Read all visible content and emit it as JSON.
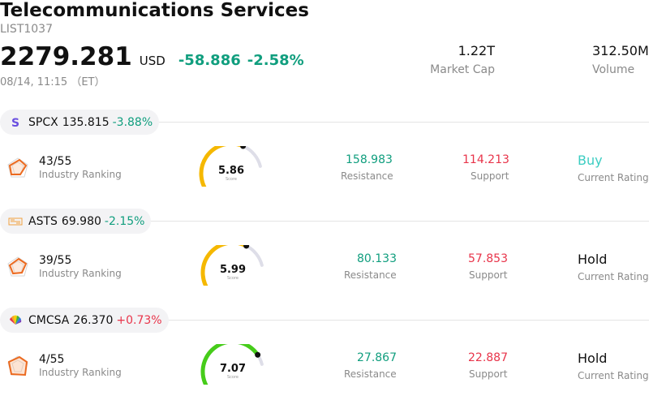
{
  "header": {
    "title": "Telecommunications Services",
    "code": "LIST1037",
    "price": "2279.281",
    "currency": "USD",
    "change": "-58.886",
    "change_pct": "-2.58%",
    "time": "08/14, 11:15 （ET）",
    "market_cap_value": "1.22T",
    "market_cap_label": "Market Cap",
    "volume_value": "312.50M",
    "volume_label": "Volume"
  },
  "stocks": [
    {
      "ticker": "SPCX",
      "price": "135.815",
      "change": "-3.88%",
      "direction": "down",
      "logo": "spcx-logo",
      "rank": "43/55",
      "rank_label": "Industry Ranking",
      "score": "5.86",
      "score_fraction": 0.586,
      "gauge_color": "#f5b800",
      "score_label": "Score",
      "resistance": "158.983",
      "resistance_label": "Resistance",
      "support": "114.213",
      "support_label": "Support",
      "rating": "Buy",
      "rating_color": "#3ccdc2",
      "rating_label": "Current Rating"
    },
    {
      "ticker": "ASTS",
      "price": "69.980",
      "change": "-2.15%",
      "direction": "down",
      "logo": "asts-logo",
      "rank": "39/55",
      "rank_label": "Industry Ranking",
      "score": "5.99",
      "score_fraction": 0.599,
      "gauge_color": "#f5b800",
      "score_label": "Score",
      "resistance": "80.133",
      "resistance_label": "Resistance",
      "support": "57.853",
      "support_label": "Support",
      "rating": "Hold",
      "rating_color": "#111111",
      "rating_label": "Current Rating"
    },
    {
      "ticker": "CMCSA",
      "price": "26.370",
      "change": "+0.73%",
      "direction": "up",
      "logo": "peacock-logo",
      "rank": "4/55",
      "rank_label": "Industry Ranking",
      "score": "7.07",
      "score_fraction": 0.707,
      "gauge_color": "#46cc1a",
      "score_label": "Score",
      "resistance": "27.867",
      "resistance_label": "Resistance",
      "support": "22.887",
      "support_label": "Support",
      "rating": "Hold",
      "rating_color": "#111111",
      "rating_label": "Current Rating"
    }
  ]
}
